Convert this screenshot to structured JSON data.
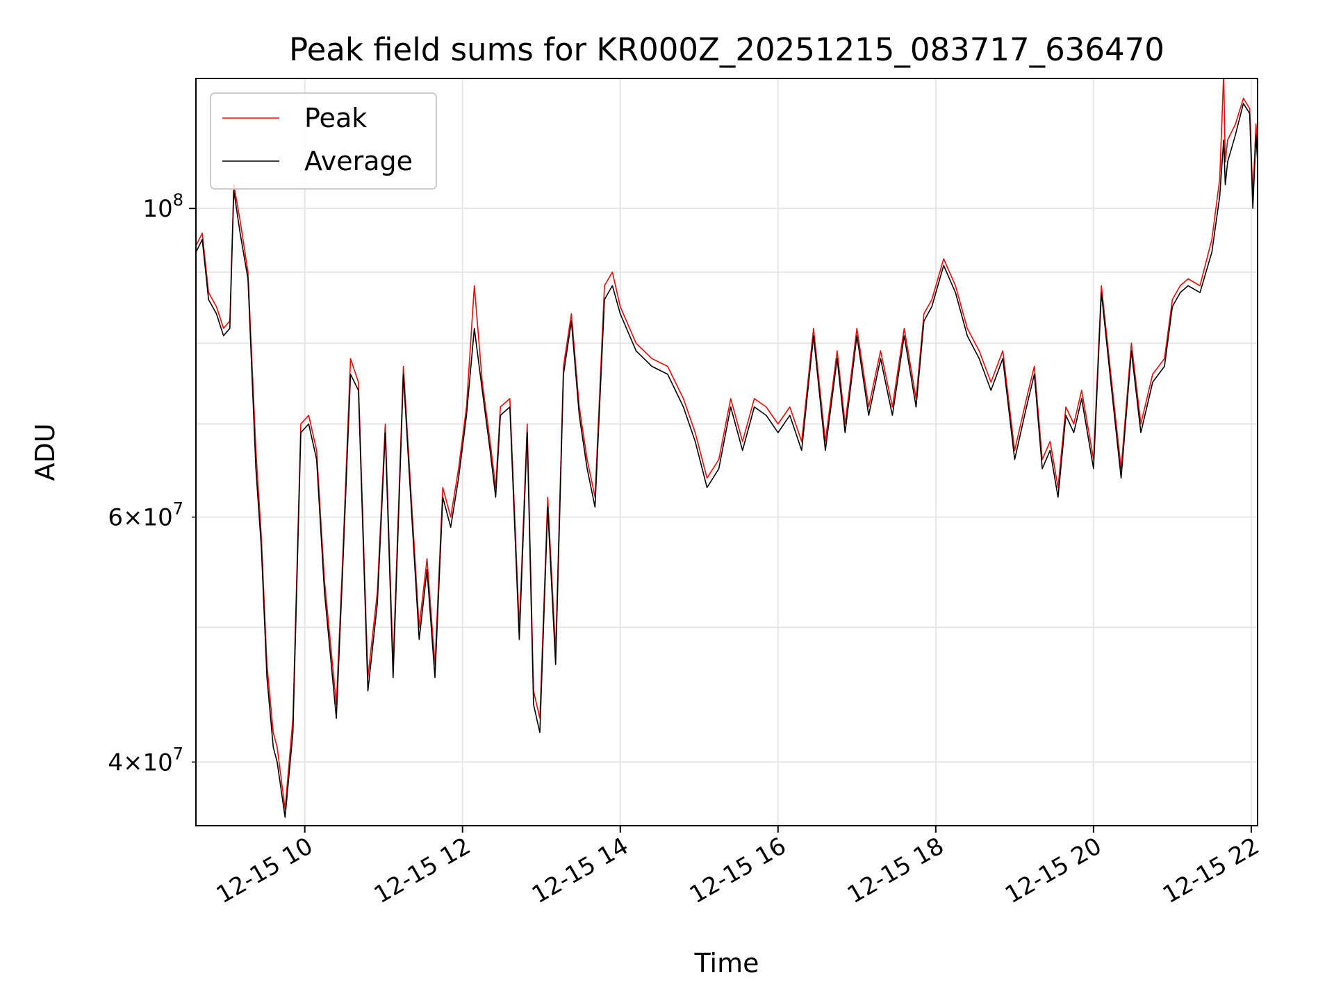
{
  "chart_data": {
    "type": "line",
    "title": "Peak field sums for KR000Z_20251215_083717_636470",
    "xlabel": "Time",
    "ylabel": "ADU",
    "yscale": "log",
    "ylim": [
      36000000,
      124000000
    ],
    "xlim_hours": [
      8.62,
      22.08
    ],
    "grid": true,
    "legend_position": "top-left",
    "x_ticks": [
      {
        "hour": 10,
        "label": "12-15 10"
      },
      {
        "hour": 12,
        "label": "12-15 12"
      },
      {
        "hour": 14,
        "label": "12-15 14"
      },
      {
        "hour": 16,
        "label": "12-15 16"
      },
      {
        "hour": 18,
        "label": "12-15 18"
      },
      {
        "hour": 20,
        "label": "12-15 20"
      },
      {
        "hour": 22,
        "label": "12-15 22"
      }
    ],
    "y_major_ticks": [
      {
        "value": 100000000,
        "base": "10",
        "exp": "8"
      }
    ],
    "y_minor_ticks": [
      {
        "value": 40000000,
        "mantissa": "4",
        "base": "10",
        "exp": "7"
      },
      {
        "value": 60000000,
        "mantissa": "6",
        "base": "10",
        "exp": "7"
      }
    ],
    "y_minor_grid": [
      40000000,
      50000000,
      60000000,
      70000000,
      80000000,
      90000000
    ],
    "series": [
      {
        "name": "Peak",
        "color": "#ff0000",
        "x_hours": [
          8.62,
          8.7,
          8.78,
          8.88,
          8.97,
          9.05,
          9.1,
          9.18,
          9.28,
          9.38,
          9.45,
          9.52,
          9.6,
          9.65,
          9.75,
          9.85,
          9.95,
          10.05,
          10.15,
          10.25,
          10.4,
          10.48,
          10.58,
          10.68,
          10.8,
          10.92,
          11.02,
          11.12,
          11.25,
          11.35,
          11.45,
          11.55,
          11.65,
          11.75,
          11.85,
          11.95,
          12.05,
          12.15,
          12.25,
          12.35,
          12.42,
          12.48,
          12.6,
          12.72,
          12.82,
          12.9,
          12.98,
          13.08,
          13.18,
          13.28,
          13.38,
          13.48,
          13.58,
          13.68,
          13.8,
          13.9,
          14.0,
          14.2,
          14.4,
          14.6,
          14.8,
          14.95,
          15.1,
          15.25,
          15.4,
          15.55,
          15.7,
          15.85,
          16.0,
          16.15,
          16.3,
          16.45,
          16.6,
          16.75,
          16.85,
          17.0,
          17.15,
          17.3,
          17.45,
          17.6,
          17.75,
          17.85,
          17.95,
          18.1,
          18.25,
          18.4,
          18.55,
          18.7,
          18.85,
          19.0,
          19.15,
          19.25,
          19.35,
          19.45,
          19.55,
          19.65,
          19.75,
          19.85,
          20.0,
          20.1,
          20.22,
          20.35,
          20.48,
          20.6,
          20.75,
          20.9,
          21.0,
          21.1,
          21.2,
          21.35,
          21.5,
          21.6,
          21.65,
          21.67,
          21.7,
          21.8,
          21.9,
          21.98,
          22.02,
          22.06,
          22.08
        ],
        "values": [
          94000000,
          96000000,
          87000000,
          85000000,
          82000000,
          83000000,
          104000000,
          98000000,
          90000000,
          67000000,
          58000000,
          47000000,
          42000000,
          41000000,
          37000000,
          43000000,
          70000000,
          71000000,
          67000000,
          54000000,
          44000000,
          56000000,
          78000000,
          75000000,
          46000000,
          53000000,
          70000000,
          47000000,
          77000000,
          62000000,
          50000000,
          56000000,
          47000000,
          63000000,
          60000000,
          65000000,
          72000000,
          88000000,
          75000000,
          68000000,
          63000000,
          72000000,
          73000000,
          50000000,
          70000000,
          45000000,
          43000000,
          62000000,
          48000000,
          77000000,
          84000000,
          72000000,
          66000000,
          62000000,
          88000000,
          90000000,
          85000000,
          80000000,
          78000000,
          77000000,
          73000000,
          69000000,
          64000000,
          66000000,
          73000000,
          68000000,
          73000000,
          72000000,
          70000000,
          72000000,
          68000000,
          82000000,
          68000000,
          79000000,
          70000000,
          82000000,
          72000000,
          79000000,
          72000000,
          82000000,
          73000000,
          84000000,
          86000000,
          92000000,
          88000000,
          82000000,
          79000000,
          75000000,
          79000000,
          67000000,
          73000000,
          77000000,
          66000000,
          68000000,
          63000000,
          72000000,
          70000000,
          74000000,
          66000000,
          88000000,
          76000000,
          65000000,
          80000000,
          70000000,
          76000000,
          78000000,
          86000000,
          88000000,
          89000000,
          88000000,
          95000000,
          105000000,
          125000000,
          108000000,
          112000000,
          115000000,
          120000000,
          118000000,
          102000000,
          115000000,
          110000000
        ]
      },
      {
        "name": "Average",
        "color": "#000000",
        "x_hours": [
          8.62,
          8.7,
          8.78,
          8.88,
          8.97,
          9.05,
          9.1,
          9.18,
          9.28,
          9.38,
          9.45,
          9.52,
          9.6,
          9.65,
          9.75,
          9.85,
          9.95,
          10.05,
          10.15,
          10.25,
          10.4,
          10.48,
          10.58,
          10.68,
          10.8,
          10.92,
          11.02,
          11.12,
          11.25,
          11.35,
          11.45,
          11.55,
          11.65,
          11.75,
          11.85,
          11.95,
          12.05,
          12.15,
          12.25,
          12.35,
          12.42,
          12.48,
          12.6,
          12.72,
          12.82,
          12.9,
          12.98,
          13.08,
          13.18,
          13.28,
          13.38,
          13.48,
          13.58,
          13.68,
          13.8,
          13.9,
          14.0,
          14.2,
          14.4,
          14.6,
          14.8,
          14.95,
          15.1,
          15.25,
          15.4,
          15.55,
          15.7,
          15.85,
          16.0,
          16.15,
          16.3,
          16.45,
          16.6,
          16.75,
          16.85,
          17.0,
          17.15,
          17.3,
          17.45,
          17.6,
          17.75,
          17.85,
          17.95,
          18.1,
          18.25,
          18.4,
          18.55,
          18.7,
          18.85,
          19.0,
          19.15,
          19.25,
          19.35,
          19.45,
          19.55,
          19.65,
          19.75,
          19.85,
          20.0,
          20.1,
          20.22,
          20.35,
          20.48,
          20.6,
          20.75,
          20.9,
          21.0,
          21.1,
          21.2,
          21.35,
          21.5,
          21.6,
          21.65,
          21.67,
          21.7,
          21.8,
          21.9,
          21.98,
          22.02,
          22.06,
          22.08
        ],
        "values": [
          93000000,
          95000000,
          86000000,
          84000000,
          81000000,
          82000000,
          103000000,
          96000000,
          89000000,
          65000000,
          57000000,
          46000000,
          41000000,
          40000000,
          36500000,
          42000000,
          69000000,
          70000000,
          66000000,
          53000000,
          43000000,
          55000000,
          76000000,
          74000000,
          45000000,
          52000000,
          69000000,
          46000000,
          76000000,
          61000000,
          49000000,
          55000000,
          46000000,
          62000000,
          59000000,
          64000000,
          71000000,
          82000000,
          74000000,
          67000000,
          62000000,
          71000000,
          72000000,
          49000000,
          69000000,
          44000000,
          42000000,
          61000000,
          47000000,
          76000000,
          83000000,
          71000000,
          65000000,
          61000000,
          86000000,
          88000000,
          84000000,
          79000000,
          77000000,
          76000000,
          72000000,
          68000000,
          63000000,
          65000000,
          72000000,
          67000000,
          72000000,
          71000000,
          69000000,
          71000000,
          67000000,
          81000000,
          67000000,
          78000000,
          69000000,
          81000000,
          71000000,
          78000000,
          71000000,
          81000000,
          72000000,
          83000000,
          85000000,
          91000000,
          87000000,
          81000000,
          78000000,
          74000000,
          78000000,
          66000000,
          72000000,
          76000000,
          65000000,
          67000000,
          62000000,
          71000000,
          69000000,
          73000000,
          65000000,
          87000000,
          75000000,
          64000000,
          79000000,
          69000000,
          75000000,
          77000000,
          85000000,
          87000000,
          88000000,
          87000000,
          93000000,
          102000000,
          112000000,
          104000000,
          108000000,
          113000000,
          119000000,
          117000000,
          100000000,
          113000000,
          108000000
        ]
      }
    ]
  }
}
